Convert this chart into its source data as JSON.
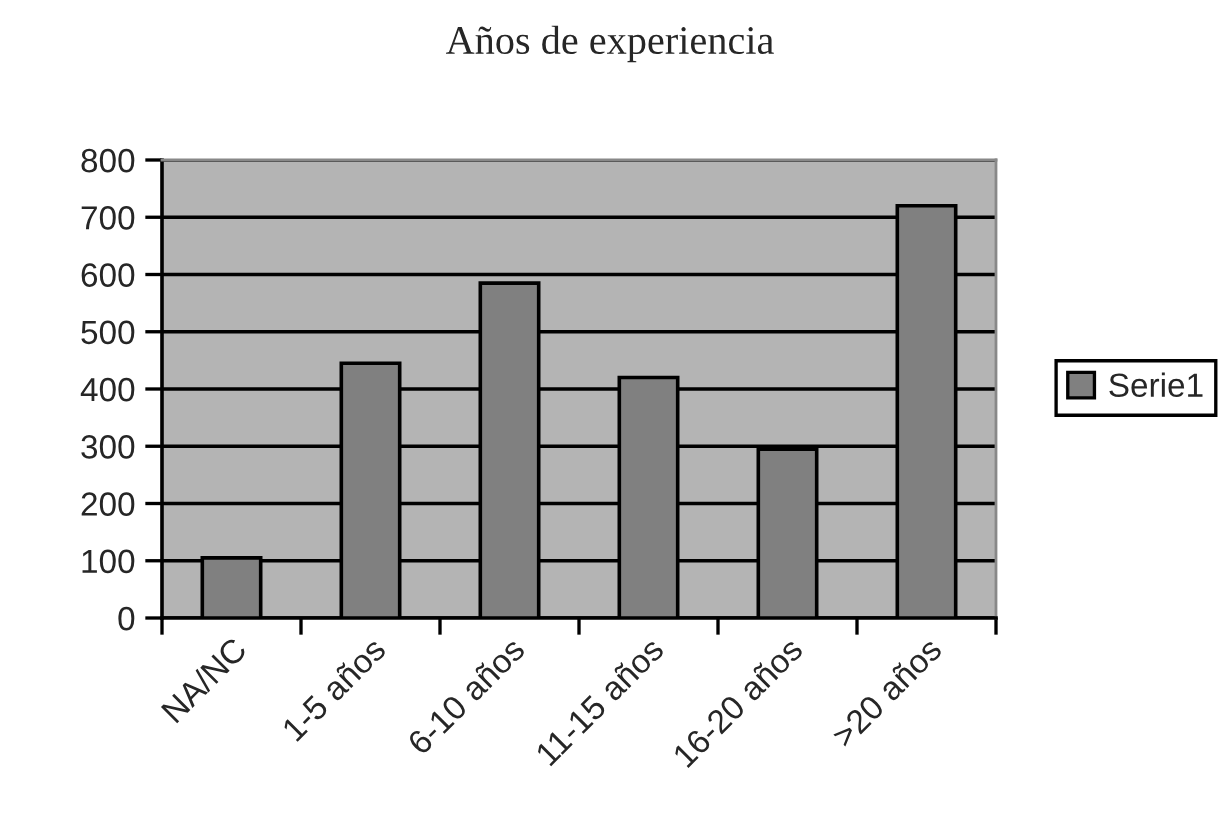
{
  "chart_data": {
    "type": "bar",
    "title": "Años de experiencia",
    "categories": [
      "NA/NC",
      "1-5 años",
      "6-10 años",
      "11-15 años",
      "16-20 años",
      ">20 años"
    ],
    "series": [
      {
        "name": "Serie1",
        "color": "#808080",
        "values": [
          105,
          445,
          585,
          420,
          295,
          720
        ]
      }
    ],
    "ylim": [
      0,
      800
    ],
    "yticks": [
      0,
      100,
      200,
      300,
      400,
      500,
      600,
      700,
      800
    ],
    "grid": "y",
    "legend": "right"
  }
}
